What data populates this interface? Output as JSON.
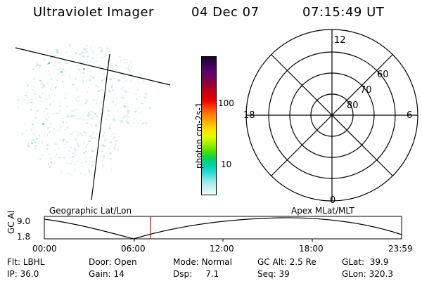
{
  "header": {
    "instrument": "Ultraviolet Imager",
    "date": "04 Dec 07",
    "time": "07:15:49 UT"
  },
  "colorbar": {
    "unit_label": "photon cm-2s-1",
    "ticks": [
      "100",
      "10"
    ],
    "colors": [
      "#1a0030",
      "#3a0050",
      "#5a0070",
      "#7a0050",
      "#a0002a",
      "#c80010",
      "#e80000",
      "#ff4000",
      "#ff8000",
      "#ffb000",
      "#ffe000",
      "#e0ff00",
      "#a0f000",
      "#50e000",
      "#00d060",
      "#00d0b0",
      "#30d8d8",
      "#8ce6e6",
      "#c8f0f0",
      "#f0fafa"
    ]
  },
  "polar_grid": {
    "lat_labels": [
      "60",
      "70",
      "80"
    ],
    "mlt_labels": {
      "top": "12",
      "bottom": "0",
      "left": "18",
      "right": "6"
    }
  },
  "panel_labels": {
    "geographic": "Geographic Lat/Lon",
    "apex": "Apex MLat/MLT"
  },
  "altitude_plot": {
    "ylabel": "GC Alt",
    "yticks": [
      "9.0",
      "1.8"
    ],
    "xticks": [
      "00:00",
      "06:00",
      "12:00",
      "18:00",
      "23:59"
    ],
    "current_marker_color": "#e00000"
  },
  "info": {
    "row1": [
      {
        "label": "Flt:",
        "value": "LBHL"
      },
      {
        "label": "Door:",
        "value": "Open"
      },
      {
        "label": "Mode:",
        "value": "Normal"
      },
      {
        "label": "GC Alt:",
        "value": "2.5 Re"
      },
      {
        "label": "GLat:",
        "value": "39.9"
      }
    ],
    "row2": [
      {
        "label": "IP:",
        "value": "36.0"
      },
      {
        "label": "Gain:",
        "value": "14"
      },
      {
        "label": "Dsp:",
        "value": "7.1"
      },
      {
        "label": "Seq:",
        "value": "39"
      },
      {
        "label": "GLon:",
        "value": "320.3"
      }
    ]
  }
}
